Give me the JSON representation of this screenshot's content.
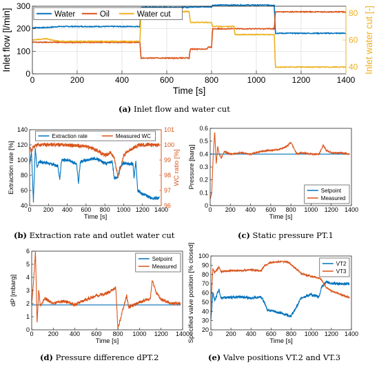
{
  "colors": {
    "blue": "#0072BD",
    "orange": "#D95319",
    "yellow": "#EDB120",
    "grid": "#DCDCDC",
    "ref": "#0072BD"
  },
  "chart_data": [
    {
      "id": "a",
      "type": "line",
      "caption_letter": "(a)",
      "caption_text": " Inlet flow and water cut",
      "xlabel": "Time [s]",
      "ylabel": "Inlet flow [l/min]",
      "y2label": "Inlet water cut [-]",
      "xlim": [
        0,
        1400
      ],
      "ylim": [
        0,
        300
      ],
      "y2lim": [
        35,
        85
      ],
      "xticks": [
        0,
        200,
        400,
        600,
        800,
        1000,
        1200,
        1400
      ],
      "yticks": [
        0,
        100,
        200,
        300
      ],
      "y2ticks": [
        40,
        60,
        80
      ],
      "y2tick_labels": [
        "40",
        "60",
        "80"
      ],
      "legend": "top-left, horizontal",
      "grid": true,
      "series": [
        {
          "name": "Water",
          "color": "blue",
          "axis": "left",
          "noise": 2,
          "x": [
            0,
            60,
            120,
            480,
            485,
            700,
            705,
            800,
            805,
            1080,
            1085,
            1400
          ],
          "y": [
            205,
            205,
            210,
            210,
            295,
            295,
            297,
            297,
            305,
            305,
            180,
            180
          ]
        },
        {
          "name": "Oil",
          "color": "orange",
          "axis": "left",
          "noise": 2,
          "x": [
            0,
            480,
            485,
            700,
            705,
            780,
            785,
            800,
            805,
            1080,
            1085,
            1400
          ],
          "y": [
            140,
            140,
            70,
            70,
            110,
            110,
            118,
            118,
            200,
            200,
            275,
            275
          ]
        },
        {
          "name": "Water cut",
          "color": "yellow",
          "axis": "right",
          "noise": 0.3,
          "x": [
            0,
            60,
            120,
            480,
            485,
            700,
            705,
            800,
            805,
            900,
            905,
            1080,
            1085,
            1400
          ],
          "y": [
            60,
            61,
            59,
            59,
            81,
            81,
            73,
            73,
            70,
            70,
            64,
            64,
            40,
            40
          ]
        }
      ]
    },
    {
      "id": "b",
      "type": "line",
      "caption_letter": "(b)",
      "caption_text": " Extraction rate and outlet water cut",
      "xlabel": "Time [s]",
      "ylabel": "Extraction rate [%]",
      "y2label": "WC ratio [%]",
      "xlim": [
        0,
        1400
      ],
      "ylim": [
        40,
        140
      ],
      "y2lim": [
        96,
        101
      ],
      "xticks": [
        0,
        200,
        400,
        600,
        800,
        1000,
        1200,
        1400
      ],
      "yticks": [
        40,
        60,
        80,
        100,
        120,
        140
      ],
      "y2ticks": [
        96,
        97,
        98,
        99,
        100,
        101
      ],
      "legend": "top, horizontal",
      "grid": false,
      "series": [
        {
          "name": "Extraction rate",
          "color": "blue",
          "axis": "left",
          "noise": 2,
          "x": [
            0,
            20,
            40,
            60,
            80,
            100,
            200,
            300,
            320,
            340,
            400,
            500,
            520,
            540,
            600,
            700,
            800,
            880,
            900,
            940,
            960,
            1000,
            1050,
            1100,
            1110,
            1130,
            1150,
            1200,
            1300,
            1380
          ],
          "y": [
            95,
            110,
            45,
            115,
            90,
            98,
            96,
            92,
            75,
            100,
            100,
            95,
            70,
            98,
            100,
            102,
            96,
            98,
            75,
            78,
            90,
            96,
            95,
            95,
            75,
            100,
            60,
            55,
            50,
            50
          ]
        },
        {
          "name": "Measured WC",
          "color": "orange",
          "axis": "right",
          "noise": 0.12,
          "x": [
            0,
            20,
            40,
            100,
            200,
            400,
            600,
            700,
            800,
            860,
            900,
            940,
            980,
            1000,
            1040,
            1080,
            1100,
            1160,
            1200,
            1300,
            1380
          ],
          "y": [
            99.8,
            99.6,
            99.9,
            100.0,
            100.0,
            100.0,
            99.9,
            99.7,
            99.3,
            99.5,
            99.1,
            97.9,
            98.8,
            99.3,
            99.6,
            99.7,
            99.8,
            100.0,
            100.0,
            100.0,
            100.0
          ]
        }
      ]
    },
    {
      "id": "c",
      "type": "line",
      "caption_letter": "(c)",
      "caption_text": " Static pressure PT.1",
      "xlabel": "Time [s]",
      "ylabel": "Pressure [barg]",
      "xlim": [
        0,
        1400
      ],
      "ylim": [
        0,
        0.6
      ],
      "xticks": [
        0,
        200,
        400,
        600,
        800,
        1000,
        1200,
        1400
      ],
      "yticks": [
        0,
        0.1,
        0.2,
        0.3,
        0.4,
        0.5,
        0.6
      ],
      "legend": "bottom-right",
      "grid": false,
      "series": [
        {
          "name": "Setpoint",
          "color": "blue",
          "noise": 0,
          "x": [
            0,
            1380
          ],
          "y": [
            0.4,
            0.4
          ]
        },
        {
          "name": "Measured",
          "color": "orange",
          "noise": 0.006,
          "x": [
            0,
            15,
            30,
            45,
            60,
            75,
            90,
            110,
            140,
            200,
            300,
            400,
            500,
            600,
            700,
            760,
            800,
            860,
            900,
            1000,
            1080,
            1120,
            1150,
            1200,
            1300,
            1380
          ],
          "y": [
            0.05,
            0.1,
            0.38,
            0.58,
            0.32,
            0.46,
            0.4,
            0.37,
            0.42,
            0.4,
            0.41,
            0.4,
            0.42,
            0.43,
            0.44,
            0.46,
            0.49,
            0.4,
            0.41,
            0.4,
            0.4,
            0.47,
            0.43,
            0.41,
            0.41,
            0.4
          ]
        }
      ]
    },
    {
      "id": "d",
      "type": "line",
      "caption_letter": "(d)",
      "caption_text": " Pressure difference dPT.2",
      "xlabel": "Time [s]",
      "ylabel": "dP [mbarg]",
      "xlim": [
        0,
        1400
      ],
      "ylim": [
        0,
        6
      ],
      "xticks": [
        0,
        200,
        400,
        600,
        800,
        1000,
        1200,
        1400
      ],
      "yticks": [
        0,
        1,
        2,
        3,
        4,
        5,
        6
      ],
      "legend": "top-right",
      "grid": false,
      "series": [
        {
          "name": "Setpoint",
          "color": "blue",
          "noise": 0,
          "x": [
            0,
            1380
          ],
          "y": [
            1.9,
            1.9
          ]
        },
        {
          "name": "Measured",
          "color": "orange",
          "noise": 0.12,
          "x": [
            0,
            20,
            35,
            50,
            65,
            80,
            120,
            200,
            300,
            400,
            500,
            600,
            700,
            780,
            800,
            880,
            900,
            1000,
            1100,
            1120,
            1150,
            1200,
            1300,
            1380
          ],
          "y": [
            2.0,
            4.0,
            6.0,
            0.5,
            3.0,
            1.8,
            2.4,
            2.0,
            2.2,
            1.9,
            2.3,
            2.6,
            2.8,
            3.2,
            0.1,
            2.6,
            1.7,
            2.1,
            2.4,
            3.8,
            2.9,
            2.3,
            2.0,
            2.0
          ]
        }
      ]
    },
    {
      "id": "e",
      "type": "line",
      "caption_letter": "(e)",
      "caption_text": " Valve positions VT.2 and VT.3",
      "xlabel": "Time [s]",
      "ylabel": "Specified valve position [% closed]",
      "xlim": [
        0,
        1400
      ],
      "ylim": [
        20,
        100
      ],
      "xticks": [
        0,
        200,
        400,
        600,
        800,
        1000,
        1200,
        1400
      ],
      "yticks": [
        20,
        30,
        40,
        50,
        60,
        70,
        80,
        90,
        100
      ],
      "legend": "top-right",
      "grid": false,
      "series": [
        {
          "name": "VT2",
          "color": "blue",
          "noise": 1.5,
          "x": [
            0,
            20,
            40,
            80,
            100,
            200,
            300,
            400,
            500,
            540,
            560,
            700,
            800,
            860,
            900,
            1000,
            1080,
            1100,
            1150,
            1200,
            1300,
            1380
          ],
          "y": [
            30,
            60,
            52,
            64,
            55,
            55,
            56,
            54,
            56,
            48,
            42,
            38,
            35,
            46,
            55,
            58,
            56,
            66,
            72,
            70,
            70,
            70
          ]
        },
        {
          "name": "VT3",
          "color": "orange",
          "noise": 0.9,
          "x": [
            0,
            20,
            40,
            80,
            100,
            200,
            300,
            400,
            500,
            540,
            600,
            700,
            780,
            800,
            900,
            1000,
            1080,
            1100,
            1150,
            1200,
            1300,
            1380
          ],
          "y": [
            45,
            86,
            82,
            88,
            83,
            84,
            84,
            85,
            84,
            90,
            93,
            94,
            93,
            91,
            81,
            78,
            76,
            74,
            66,
            62,
            58,
            55
          ]
        }
      ]
    }
  ]
}
